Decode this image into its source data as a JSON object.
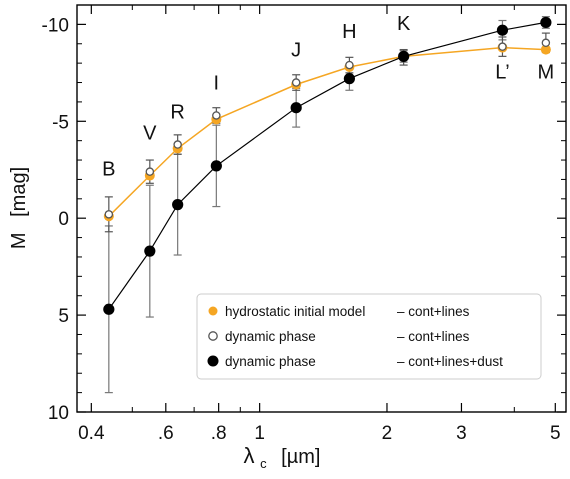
{
  "chart_data": {
    "type": "scatter",
    "x_scale": "log",
    "y_inverted": true,
    "xlim": [
      0.37,
      5.3
    ],
    "ylim": [
      10,
      -11
    ],
    "ylabel": "M",
    "ylabel_unit": "[mag]",
    "xlabel": "λ",
    "xlabel_subscript": "c",
    "xlabel_unit": "[µm]",
    "x_ticks": [
      {
        "value": 0.4,
        "label": "0.4"
      },
      {
        "value": 0.6,
        "label": ".6"
      },
      {
        "value": 0.8,
        "label": ".8"
      },
      {
        "value": 1,
        "label": "1"
      },
      {
        "value": 2,
        "label": "2"
      },
      {
        "value": 3,
        "label": "3"
      },
      {
        "value": 5,
        "label": "5"
      }
    ],
    "x_minor_ticks": [
      0.5,
      0.7,
      0.9,
      4
    ],
    "y_ticks": [
      {
        "value": -10,
        "label": "-10"
      },
      {
        "value": -5,
        "label": "-5"
      },
      {
        "value": 0,
        "label": "0"
      },
      {
        "value": 5,
        "label": "5"
      },
      {
        "value": 10,
        "label": "10"
      }
    ],
    "band_labels": [
      {
        "text": "B",
        "x": 0.44,
        "y": 2.2
      },
      {
        "text": "V",
        "x": 0.55,
        "y": 4.05
      },
      {
        "text": "R",
        "x": 0.64,
        "y": 5.15
      },
      {
        "text": "I",
        "x": 0.79,
        "y": 6.65
      },
      {
        "text": "J",
        "x": 1.22,
        "y": 8.35
      },
      {
        "text": "H",
        "x": 1.63,
        "y": 9.3
      },
      {
        "text": "K",
        "x": 2.19,
        "y": 9.7
      },
      {
        "text": "L’",
        "x": 3.75,
        "y": 7.2
      },
      {
        "text": "M",
        "x": 4.75,
        "y": 7.2
      }
    ],
    "series": [
      {
        "name": "hydrostatic initial model",
        "legend_desc": "– cont+lines",
        "marker": "filled-circle-small",
        "color": "#f5a623",
        "line": true,
        "x": [
          0.44,
          0.55,
          0.64,
          0.79,
          1.22,
          1.63,
          2.19,
          3.75,
          4.75
        ],
        "y": [
          -0.1,
          -2.2,
          -3.6,
          -5.1,
          -6.9,
          -7.8,
          -8.35,
          -8.8,
          -8.7
        ]
      },
      {
        "name": "dynamic phase",
        "legend_desc": "– cont+lines",
        "marker": "open-circle",
        "color": "#888888",
        "line": false,
        "x": [
          0.44,
          0.55,
          0.64,
          0.79,
          1.22,
          1.63,
          2.19,
          3.75,
          4.75
        ],
        "y": [
          -0.2,
          -2.4,
          -3.8,
          -5.3,
          -7.0,
          -7.9,
          -8.3,
          -8.85,
          -9.05
        ],
        "err": [
          0.9,
          0.6,
          0.5,
          0.4,
          0.4,
          0.4,
          0.4,
          0.5,
          0.5
        ]
      },
      {
        "name": "dynamic phase",
        "legend_desc": "– cont+lines+dust",
        "marker": "filled-circle-large",
        "color": "#000000",
        "line": true,
        "x": [
          0.44,
          0.55,
          0.64,
          0.79,
          1.22,
          1.63,
          2.19,
          3.75,
          4.75
        ],
        "y": [
          4.7,
          1.7,
          -0.7,
          -2.7,
          -5.7,
          -7.2,
          -8.35,
          -9.7,
          -10.1
        ],
        "err": [
          4.3,
          3.4,
          2.6,
          2.1,
          1.0,
          0.6,
          0.3,
          0.5,
          0.3
        ]
      }
    ]
  }
}
